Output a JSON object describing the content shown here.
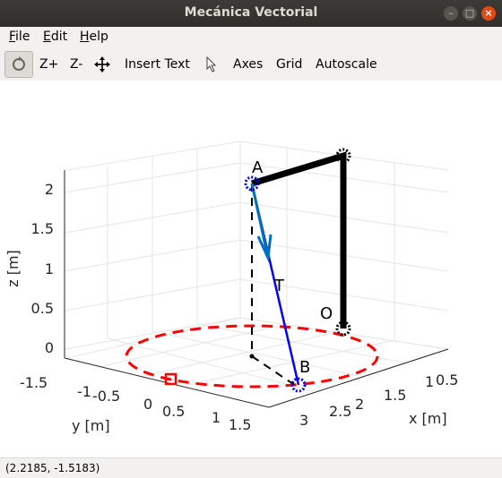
{
  "window": {
    "title": "Mecánica Vectorial",
    "minimize_glyph": "–",
    "maximize_glyph": "□",
    "close_glyph": "×"
  },
  "menu": {
    "file": "File",
    "edit": "Edit",
    "help": "Help"
  },
  "toolbar": {
    "rotate_icon": "rotate-3d-icon",
    "zoom_in": "Z+",
    "zoom_out": "Z-",
    "pan_icon": "pan-arrows-icon",
    "insert_text": "Insert Text",
    "select_icon": "cursor-arrow-icon",
    "axes": "Axes",
    "grid": "Grid",
    "autoscale": "Autoscale"
  },
  "plot": {
    "z_label": "z [m]",
    "y_label": "y [m]",
    "x_label": "x [m]",
    "z_ticks": [
      "2",
      "1.5",
      "1",
      "0.5",
      "0"
    ],
    "y_ticks": [
      "-1.5",
      "-1",
      "-0.5",
      "0",
      "0.5",
      "1",
      "1.5"
    ],
    "x_ticks": [
      "0.5",
      "1",
      "1.5",
      "2",
      "2.5",
      "3"
    ],
    "points": {
      "A": "A",
      "B": "B",
      "O": "O",
      "T": "T"
    },
    "colors": {
      "frame": "#000000",
      "rope": "#0000ff",
      "arrow": "#0072bd",
      "circle": "#ff0000"
    }
  },
  "status": {
    "coords": "(2.2185, -1.5183)"
  }
}
